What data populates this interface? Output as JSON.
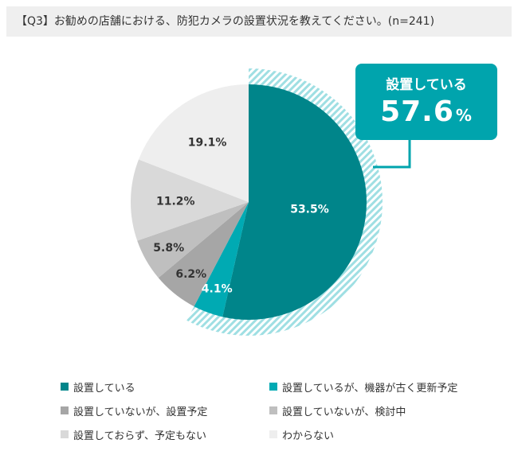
{
  "header": {
    "title": "【Q3】お勧めの店舗における、防犯カメラの設置状況を教えてください。(n=241)"
  },
  "callout": {
    "label": "設置している",
    "value": "57.6",
    "unit": "%"
  },
  "chart_data": {
    "type": "pie",
    "title": "【Q3】お勧めの店舗における、防犯カメラの設置状況を教えてください。(n=241)",
    "start": "12 o'clock",
    "direction": "clockwise",
    "slices": [
      {
        "name": "設置している",
        "value": 53.5,
        "label": "53.5%",
        "color": "#00858a",
        "label_color": "#ffffff"
      },
      {
        "name": "設置しているが、機器が古く更新予定",
        "value": 4.1,
        "label": "4.1%",
        "color": "#00aab3",
        "label_color": "#ffffff"
      },
      {
        "name": "設置していないが、設置予定",
        "value": 6.2,
        "label": "6.2%",
        "color": "#a6a6a6",
        "label_color": "#333333"
      },
      {
        "name": "設置していないが、検討中",
        "value": 5.8,
        "label": "5.8%",
        "color": "#bfbfbf",
        "label_color": "#333333"
      },
      {
        "name": "設置しておらず、予定もない",
        "value": 11.2,
        "label": "11.2%",
        "color": "#d9d9d9",
        "label_color": "#333333"
      },
      {
        "name": "わからない",
        "value": 19.1,
        "label": "19.1%",
        "color": "#eeeeee",
        "label_color": "#333333"
      }
    ],
    "highlight": {
      "label": "設置している",
      "value": 57.6,
      "covers": [
        "設置している",
        "設置しているが、機器が古く更新予定"
      ],
      "pattern": "diagonal-stripes",
      "color": "#9fdfe3"
    },
    "legend": {
      "placement": "bottom",
      "columns": 2
    }
  }
}
